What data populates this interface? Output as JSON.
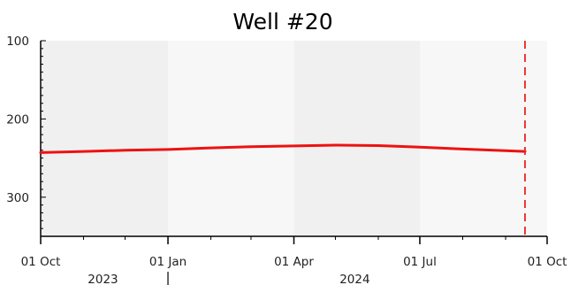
{
  "chart_data": {
    "type": "line",
    "title": "Well #20",
    "xlabel": "",
    "ylabel": "",
    "ylim_inverted": [
      100,
      350
    ],
    "y_ticks": [
      100,
      200,
      300
    ],
    "y_tick_labels": [
      "100",
      "200",
      "300"
    ],
    "x_range": [
      "2023-10-01",
      "2024-10-01"
    ],
    "x_ticks": [
      {
        "date": "2023-10-01",
        "label": "01 Oct"
      },
      {
        "date": "2024-01-01",
        "label": "01 Jan"
      },
      {
        "date": "2024-04-01",
        "label": "01 Apr"
      },
      {
        "date": "2024-07-01",
        "label": "01 Jul"
      },
      {
        "date": "2024-10-01",
        "label": "01 Oct"
      }
    ],
    "year_labels": [
      {
        "year": "2023",
        "date": "2023-11-15"
      },
      {
        "year": "2024",
        "date": "2024-05-15"
      }
    ],
    "year_separator_date": "2024-01-01",
    "background_bands": [
      {
        "from": "2023-10-01",
        "to": "2024-01-01",
        "color": "#f0f0f0"
      },
      {
        "from": "2024-01-01",
        "to": "2024-04-01",
        "color": "#f7f7f7"
      },
      {
        "from": "2024-04-01",
        "to": "2024-07-01",
        "color": "#f0f0f0"
      },
      {
        "from": "2024-07-01",
        "to": "2024-10-01",
        "color": "#f7f7f7"
      }
    ],
    "series": [
      {
        "color": "#ee1111",
        "points": [
          {
            "x": "2023-10-01",
            "y": 243
          },
          {
            "x": "2023-11-01",
            "y": 241.5
          },
          {
            "x": "2023-12-01",
            "y": 240
          },
          {
            "x": "2024-01-01",
            "y": 239
          },
          {
            "x": "2024-02-01",
            "y": 237
          },
          {
            "x": "2024-03-01",
            "y": 235.5
          },
          {
            "x": "2024-04-01",
            "y": 234.5
          },
          {
            "x": "2024-05-01",
            "y": 233.5
          },
          {
            "x": "2024-06-01",
            "y": 234
          },
          {
            "x": "2024-07-01",
            "y": 236
          },
          {
            "x": "2024-08-01",
            "y": 238.5
          },
          {
            "x": "2024-09-01",
            "y": 240.5
          },
          {
            "x": "2024-09-15",
            "y": 241.5
          }
        ]
      }
    ],
    "marker_line": {
      "date": "2024-09-15",
      "color": "#ee2222",
      "style": "dashed"
    },
    "grid": false
  }
}
